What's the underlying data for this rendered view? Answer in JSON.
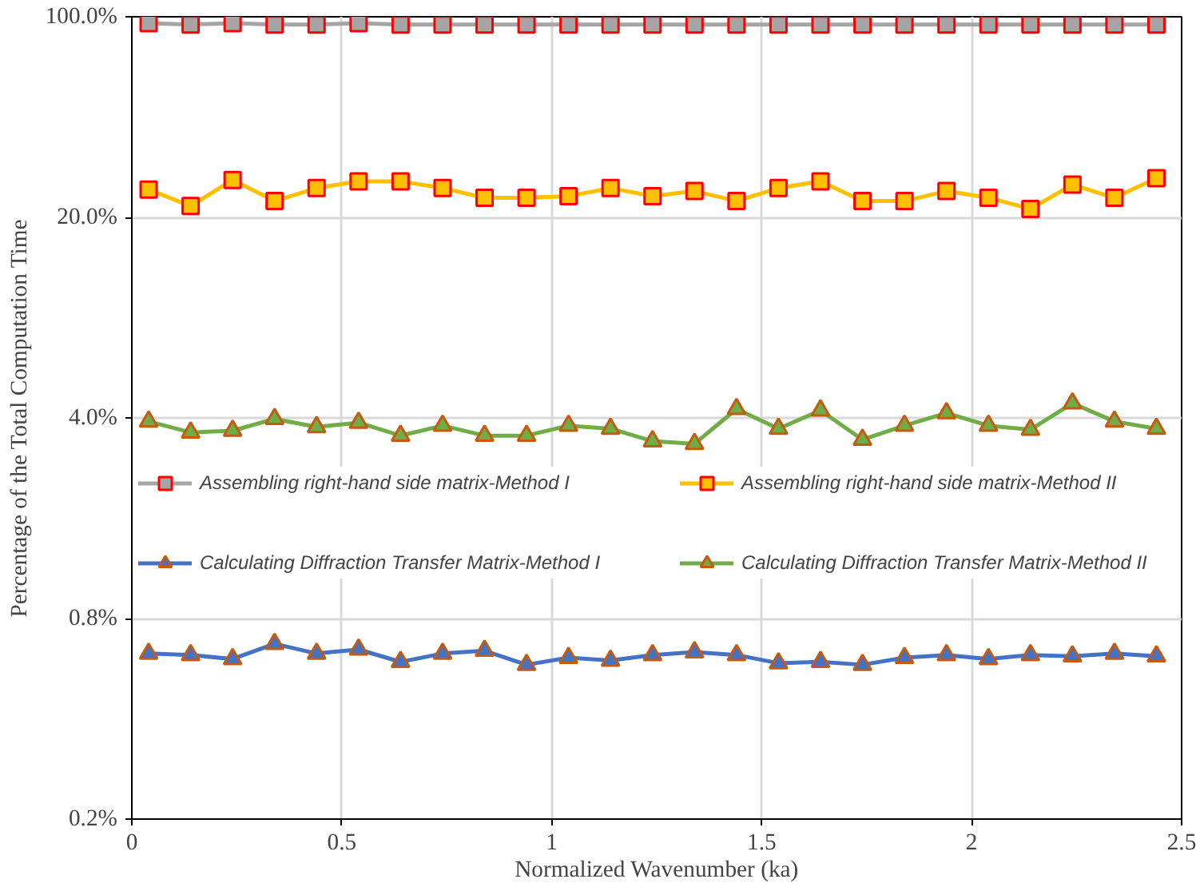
{
  "chart_data": {
    "type": "line",
    "xlabel": "Normalized Wavenumber (ka)",
    "ylabel": "Percentage of the Total Computation Time",
    "x": [
      0.04,
      0.14,
      0.24,
      0.34,
      0.44,
      0.54,
      0.64,
      0.74,
      0.84,
      0.94,
      1.04,
      1.14,
      1.24,
      1.34,
      1.44,
      1.54,
      1.64,
      1.74,
      1.84,
      1.94,
      2.04,
      2.14,
      2.24,
      2.34,
      2.44
    ],
    "series": [
      {
        "name": "Assembling right-hand side matrix-Method I",
        "color": "#a5a5a5",
        "marker": "square",
        "values": [
          95,
          94,
          95,
          94,
          94,
          95,
          94,
          94,
          94,
          94,
          94,
          94,
          94,
          94,
          94,
          94,
          94,
          94,
          94,
          94,
          94,
          94,
          94,
          94,
          94
        ]
      },
      {
        "name": "Assembling right-hand side matrix-Method II",
        "color": "#ffc000",
        "marker": "square",
        "values": [
          25.0,
          21.9,
          27.0,
          22.8,
          25.3,
          26.7,
          26.7,
          25.3,
          23.4,
          23.4,
          23.7,
          25.3,
          23.7,
          24.7,
          22.8,
          25.3,
          26.7,
          22.8,
          22.8,
          24.7,
          23.4,
          21.4,
          26.0,
          23.4,
          27.4
        ]
      },
      {
        "name": "Calculating Diffraction Transfer Matrix-Method I",
        "color": "#4472c4",
        "marker": "triangle",
        "values": [
          0.604,
          0.597,
          0.578,
          0.653,
          0.604,
          0.624,
          0.565,
          0.604,
          0.618,
          0.552,
          0.584,
          0.571,
          0.597,
          0.611,
          0.597,
          0.559,
          0.565,
          0.552,
          0.584,
          0.597,
          0.578,
          0.597,
          0.591,
          0.604,
          0.591
        ]
      },
      {
        "name": "Calculating Diffraction Transfer Matrix-Method II",
        "color": "#70ad47",
        "marker": "triangle",
        "values": [
          3.89,
          3.56,
          3.61,
          3.97,
          3.72,
          3.85,
          3.47,
          3.76,
          3.47,
          3.47,
          3.76,
          3.67,
          3.32,
          3.25,
          4.3,
          3.67,
          4.25,
          3.36,
          3.76,
          4.16,
          3.76,
          3.64,
          4.5,
          3.89,
          3.67
        ]
      }
    ],
    "log": true,
    "xlim": [
      0,
      2.5
    ],
    "xticks": [
      0,
      0.5,
      1,
      1.5,
      2,
      2.5
    ],
    "ylim": [
      0.16,
      100
    ],
    "yticks": [
      {
        "value": 0.16,
        "label": "0.2%"
      },
      {
        "value": 0.8,
        "label": "0.8%"
      },
      {
        "value": 4,
        "label": "4.0%"
      },
      {
        "value": 20,
        "label": "20.0%"
      },
      {
        "value": 100,
        "label": "100.0%"
      }
    ],
    "grid": true,
    "legend": "center",
    "line_style": "solid"
  }
}
